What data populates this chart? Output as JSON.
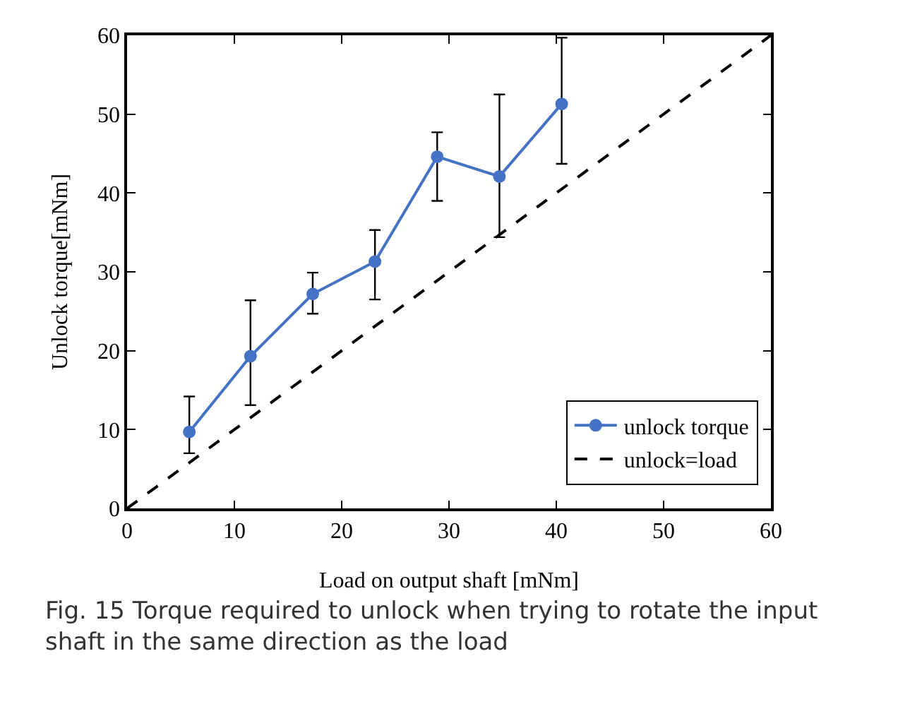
{
  "chart_data": {
    "type": "line",
    "xlabel": "Load on output shaft [mNm]",
    "ylabel": "Unlock torque[mNm]",
    "xlim": [
      0,
      60
    ],
    "ylim": [
      0,
      60
    ],
    "xticks": [
      0,
      10,
      20,
      30,
      40,
      50,
      60
    ],
    "yticks": [
      0,
      10,
      20,
      30,
      40,
      50,
      60
    ],
    "grid": false,
    "legend": "bottom right",
    "series": [
      {
        "name": "unlock torque",
        "color": "#4472c4",
        "marker": "circle",
        "line_style": "solid",
        "x": [
          5.8,
          11.5,
          17.3,
          23.1,
          28.9,
          34.7,
          40.5
        ],
        "values": [
          9.7,
          19.3,
          27.2,
          31.3,
          44.6,
          42.1,
          51.3
        ],
        "errors": [
          [
            7.0,
            14.2
          ],
          [
            13.1,
            26.4
          ],
          [
            24.7,
            29.9
          ],
          [
            26.5,
            35.3
          ],
          [
            39.0,
            47.7
          ],
          [
            34.4,
            52.5
          ],
          [
            43.7,
            59.7
          ]
        ]
      },
      {
        "name": "unlock=load",
        "color": "#000000",
        "marker": "none",
        "line_style": "dashed",
        "x": [
          0,
          60
        ],
        "values": [
          0,
          60
        ]
      }
    ],
    "annotations": [
      "Fig. 15  Torque required to unlock when trying to rotate the input shaft in the same direction as the load"
    ]
  }
}
